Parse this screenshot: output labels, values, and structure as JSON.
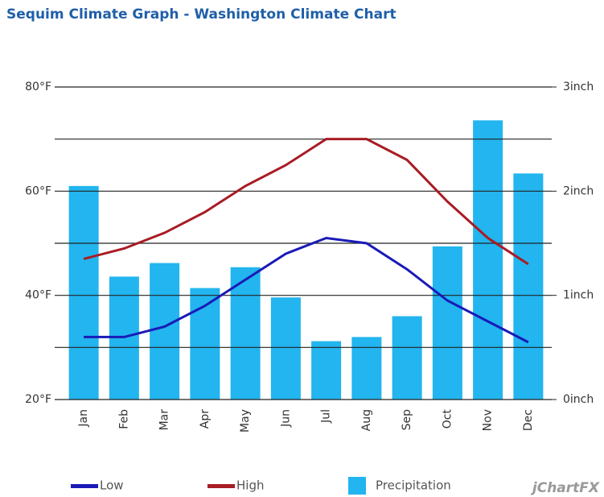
{
  "chart_data": {
    "type": "bar_line",
    "title": "Sequim Climate Graph - Washington Climate Chart",
    "categories": [
      "Jan",
      "Feb",
      "Mar",
      "Apr",
      "May",
      "Jun",
      "Jul",
      "Aug",
      "Sep",
      "Oct",
      "Nov",
      "Dec"
    ],
    "series": [
      {
        "name": "Low",
        "type": "line",
        "color": "#1a1ab8",
        "values": [
          32,
          32,
          34,
          38,
          43,
          48,
          51,
          50,
          45,
          39,
          35,
          31
        ]
      },
      {
        "name": "High",
        "type": "line",
        "color": "#a81c24",
        "values": [
          47,
          49,
          52,
          56,
          61,
          65,
          70,
          70,
          66,
          58,
          51,
          46
        ]
      },
      {
        "name": "Precipitation",
        "type": "bar",
        "axis": "y2",
        "color": "#22b5ef",
        "values": [
          2.05,
          1.18,
          1.31,
          1.07,
          1.27,
          0.98,
          0.56,
          0.6,
          0.8,
          1.47,
          2.68,
          2.17
        ]
      }
    ],
    "ylim": [
      20,
      80
    ],
    "yticks": [
      {
        "value": 20,
        "label": "20°F"
      },
      {
        "value": 40,
        "label": "40°F"
      },
      {
        "value": 60,
        "label": "60°F"
      },
      {
        "value": 80,
        "label": "80°F"
      }
    ],
    "minor_grid": [
      30,
      50,
      70
    ],
    "y2lim": [
      0,
      3
    ],
    "y2ticks": [
      {
        "value": 0,
        "label": "0inch"
      },
      {
        "value": 1,
        "label": "1inch"
      },
      {
        "value": 2,
        "label": "2inch"
      },
      {
        "value": 3,
        "label": "3inch"
      }
    ],
    "grid": true,
    "legend": "bottom",
    "watermark": "jChartFX"
  }
}
